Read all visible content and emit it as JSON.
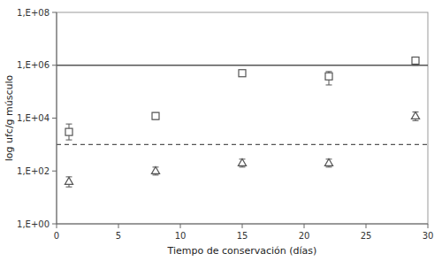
{
  "chart_data": {
    "type": "scatter",
    "xlabel": "Tiempo de conservación (días)",
    "ylabel": "log ufc/g músculo",
    "log": "y",
    "grid": false,
    "xlim": [
      0,
      30
    ],
    "xticks": [
      0,
      5,
      10,
      15,
      20,
      25,
      30
    ],
    "ylim": [
      1,
      100000000
    ],
    "yticks": [
      {
        "value": 1,
        "label": "1,E+00"
      },
      {
        "value": 100,
        "label": "1,E+02"
      },
      {
        "value": 10000,
        "label": "1,E+04"
      },
      {
        "value": 1000000,
        "label": "1,E+06"
      },
      {
        "value": 100000000,
        "label": "1,E+08"
      }
    ],
    "series": [
      {
        "marker": "square",
        "color": "#555555",
        "x": [
          1,
          8,
          15,
          22,
          29
        ],
        "values": [
          3000,
          12000,
          500000,
          380000,
          1500000
        ],
        "error_low": [
          1500,
          3000,
          80000,
          200000,
          500000
        ],
        "error_high": [
          3000,
          4000,
          80000,
          200000,
          500000
        ]
      },
      {
        "marker": "triangle",
        "color": "#555555",
        "x": [
          1,
          8,
          15,
          22,
          29
        ],
        "values": [
          40,
          100,
          200,
          200,
          12000
        ],
        "error_low": [
          15,
          30,
          60,
          60,
          4000
        ],
        "error_high": [
          20,
          40,
          80,
          80,
          5000
        ]
      }
    ],
    "hlines": [
      {
        "value": 1000000,
        "line_style": "solid",
        "color": "#555555"
      },
      {
        "value": 1000,
        "line_style": "dashed",
        "color": "#555555"
      }
    ]
  }
}
